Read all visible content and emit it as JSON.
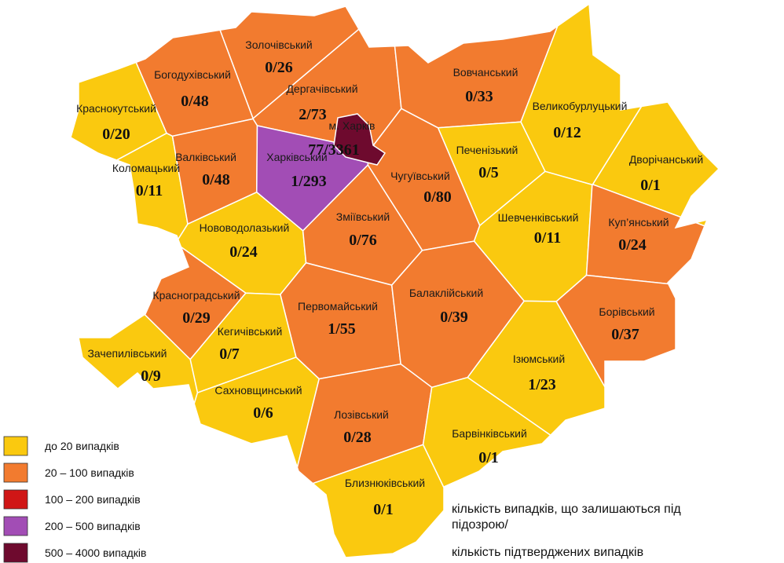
{
  "regions": [
    {
      "name": "Золочівський",
      "counts": "0/26",
      "color": "#f27b2f"
    },
    {
      "name": "Богодухівський",
      "counts": "0/48",
      "color": "#f27b2f"
    },
    {
      "name": "Краснокутський",
      "counts": "0/20",
      "color": "#fac90f"
    },
    {
      "name": "Дергачівський",
      "counts": "2/73",
      "color": "#f27b2f"
    },
    {
      "name": "м. Харків",
      "counts": "77/3361",
      "color": "#6e0a2e"
    },
    {
      "name": "Вовчанський",
      "counts": "0/33",
      "color": "#f27b2f"
    },
    {
      "name": "Великобурлуцький",
      "counts": "0/12",
      "color": "#fac90f"
    },
    {
      "name": "Коломацький",
      "counts": "0/11",
      "color": "#fac90f"
    },
    {
      "name": "Валківський",
      "counts": "0/48",
      "color": "#f27b2f"
    },
    {
      "name": "Харківський",
      "counts": "1/293",
      "color": "#a24db5"
    },
    {
      "name": "Печенізький",
      "counts": "0/5",
      "color": "#fac90f"
    },
    {
      "name": "Чугуївський",
      "counts": "0/80",
      "color": "#f27b2f"
    },
    {
      "name": "Дворічанський",
      "counts": "0/1",
      "color": "#fac90f"
    },
    {
      "name": "Нововодолазький",
      "counts": "0/24",
      "color": "#fac90f"
    },
    {
      "name": "Зміївський",
      "counts": "0/76",
      "color": "#f27b2f"
    },
    {
      "name": "Шевченківський",
      "counts": "0/11",
      "color": "#fac90f"
    },
    {
      "name": "Куп’янський",
      "counts": "0/24",
      "color": "#f27b2f"
    },
    {
      "name": "Красноградський",
      "counts": "0/29",
      "color": "#f27b2f"
    },
    {
      "name": "Первомайський",
      "counts": "1/55",
      "color": "#f27b2f"
    },
    {
      "name": "Балаклійський",
      "counts": "0/39",
      "color": "#f27b2f"
    },
    {
      "name": "Борівський",
      "counts": "0/37",
      "color": "#f27b2f"
    },
    {
      "name": "Кегичівський",
      "counts": "0/7",
      "color": "#fac90f"
    },
    {
      "name": "Зачепилівський",
      "counts": "0/9",
      "color": "#fac90f"
    },
    {
      "name": "Ізюмський",
      "counts": "1/23",
      "color": "#fac90f"
    },
    {
      "name": "Сахновщинський",
      "counts": "0/6",
      "color": "#fac90f"
    },
    {
      "name": "Лозівський",
      "counts": "0/28",
      "color": "#f27b2f"
    },
    {
      "name": "Барвінківський",
      "counts": "0/1",
      "color": "#fac90f"
    },
    {
      "name": "Близнюківський",
      "counts": "0/1",
      "color": "#fac90f"
    }
  ],
  "legend": [
    {
      "label": "до 20  випадків",
      "color": "#fac90f"
    },
    {
      "label": "20 – 100  випадків",
      "color": "#f27b2f"
    },
    {
      "label": "100 – 200  випадків",
      "color": "#d01616"
    },
    {
      "label": "200 – 500  випадків",
      "color": "#a24db5"
    },
    {
      "label": "500 – 4000  випадків",
      "color": "#6e0a2e"
    }
  ],
  "note": [
    "кількість випадків, що залишаються під",
    "підозрою/",
    "кількість підтверджених випадків"
  ]
}
